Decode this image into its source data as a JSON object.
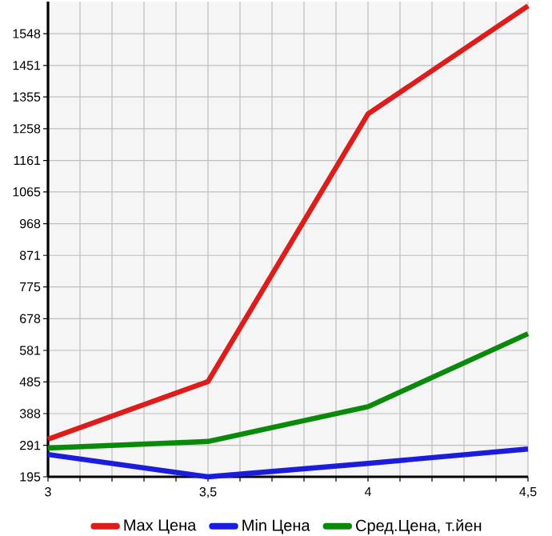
{
  "chart_data": {
    "type": "line",
    "x": [
      3,
      3.5,
      4,
      4.5
    ],
    "series": [
      {
        "name": "Max Цена",
        "color": "#dd1c1c",
        "values": [
          310,
          486,
          1303,
          1633
        ]
      },
      {
        "name": "Min Цена",
        "color": "#1c1cdd",
        "values": [
          263,
          195,
          236,
          280
        ]
      },
      {
        "name": "Сред.Цена, т.йен",
        "color": "#0a8a0a",
        "values": [
          283,
          303,
          409,
          632
        ]
      }
    ],
    "xlim": [
      3,
      4.5
    ],
    "ylim": [
      195,
      1646
    ],
    "xticks": [
      3,
      {
        "value": 3.5,
        "label": "3,5"
      },
      4,
      {
        "value": 4.5,
        "label": "4,5"
      }
    ],
    "yticks": [
      195,
      291,
      388,
      485,
      581,
      678,
      775,
      871,
      968,
      1065,
      1161,
      1258,
      1355,
      1451,
      1548
    ],
    "grid": true,
    "legend": "bottom",
    "marker": "none",
    "line_style": "solid"
  }
}
